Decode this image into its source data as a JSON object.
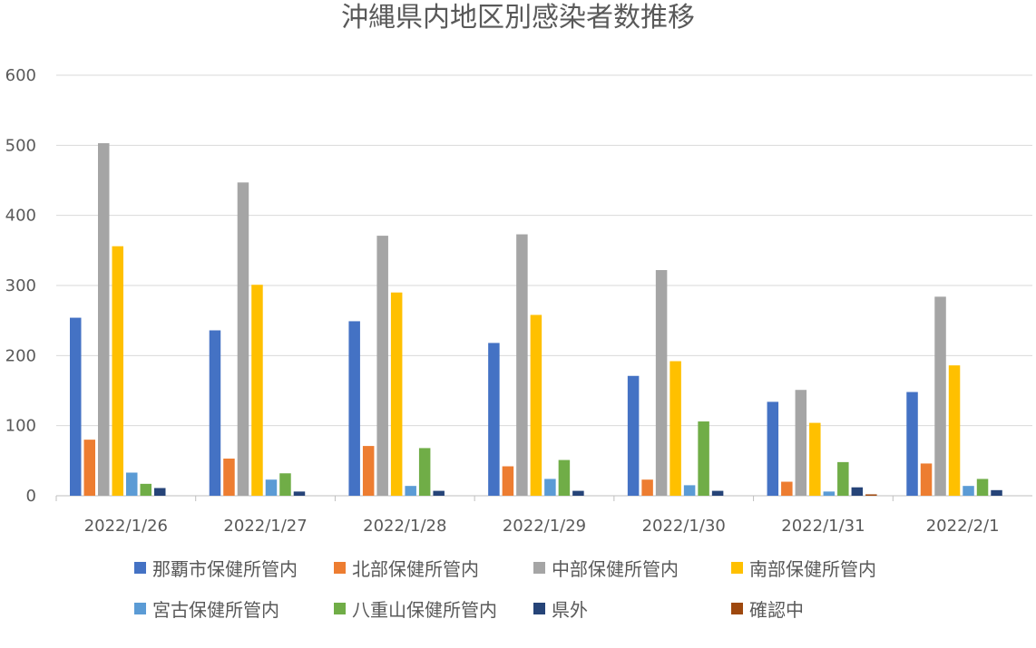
{
  "chart_data": {
    "type": "bar",
    "title": "沖縄県内地区別感染者数推移",
    "categories": [
      "2022/1/26",
      "2022/1/27",
      "2022/1/28",
      "2022/1/29",
      "2022/1/30",
      "2022/1/31",
      "2022/2/1"
    ],
    "ylim": [
      0,
      600
    ],
    "yticks": [
      "0",
      "100",
      "200",
      "300",
      "400",
      "500",
      "600"
    ],
    "grid": true,
    "legend_position": "bottom",
    "series": [
      {
        "name": "那覇市保健所管内",
        "color": "#4472C4",
        "values": [
          254,
          236,
          249,
          218,
          171,
          134,
          148
        ]
      },
      {
        "name": "北部保健所管内",
        "color": "#ED7D31",
        "values": [
          80,
          53,
          71,
          42,
          23,
          20,
          46
        ]
      },
      {
        "name": "中部保健所管内",
        "color": "#A5A5A5",
        "values": [
          503,
          447,
          371,
          373,
          322,
          151,
          284
        ]
      },
      {
        "name": "南部保健所管内",
        "color": "#FFC000",
        "values": [
          356,
          301,
          290,
          258,
          192,
          104,
          186
        ]
      },
      {
        "name": "宮古保健所管内",
        "color": "#5B9BD5",
        "values": [
          33,
          23,
          14,
          24,
          15,
          6,
          14
        ]
      },
      {
        "name": "八重山保健所管内",
        "color": "#70AD47",
        "values": [
          17,
          32,
          68,
          51,
          106,
          48,
          24
        ]
      },
      {
        "name": "県外",
        "color": "#264478",
        "values": [
          11,
          6,
          7,
          7,
          7,
          12,
          8
        ]
      },
      {
        "name": "確認中",
        "color": "#9E480E",
        "values": [
          0,
          0,
          0,
          0,
          0,
          2,
          0
        ]
      }
    ]
  }
}
